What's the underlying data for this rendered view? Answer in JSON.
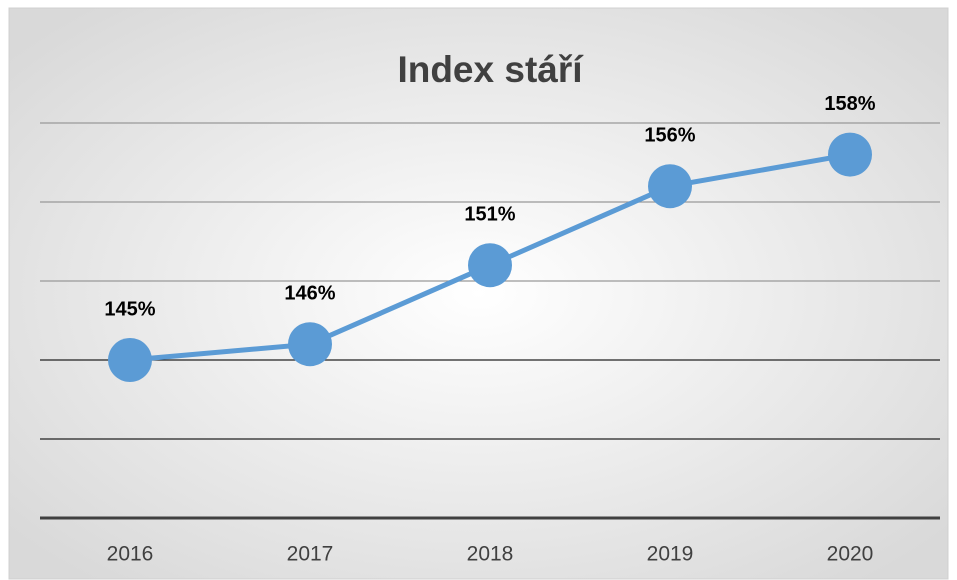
{
  "chart_data": {
    "type": "line",
    "title": "Index stáří",
    "categories": [
      "2016",
      "2017",
      "2018",
      "2019",
      "2020"
    ],
    "values": [
      145,
      146,
      151,
      156,
      158
    ],
    "value_labels": [
      "145%",
      "146%",
      "151%",
      "156%",
      "158%"
    ],
    "color": "#5b9bd5",
    "ylim": [
      135,
      160
    ],
    "yticks": [
      135,
      140,
      145,
      150,
      155,
      160
    ],
    "grid": true
  }
}
